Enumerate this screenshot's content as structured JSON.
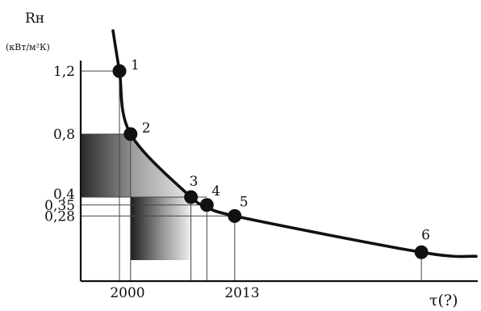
{
  "chart_data": {
    "type": "line",
    "ylabel": "Rн",
    "ylabel_unit": "(кВт/м²К)",
    "xlabel": "τ(?)",
    "y_ticks": [
      "1,2",
      "0,8",
      "0,4",
      "0,35",
      "0,28"
    ],
    "y_tick_values": [
      1.2,
      0.8,
      0.4,
      0.35,
      0.28
    ],
    "x_ticks": [
      "2000",
      "2013"
    ],
    "x_tick_values": [
      2000,
      2013
    ],
    "ylim": [
      0,
      1.45
    ],
    "xlim": [
      1995,
      2046
    ],
    "grid": false,
    "series": [
      {
        "points": [
          {
            "label": "1",
            "x": 2000,
            "y": 1.2
          },
          {
            "label": "2",
            "x": 2001.4,
            "y": 0.8
          },
          {
            "label": "3",
            "x": 2009,
            "y": 0.4
          },
          {
            "label": "4",
            "x": 2011,
            "y": 0.35
          },
          {
            "label": "5",
            "x": 2014.5,
            "y": 0.28
          },
          {
            "label": "6",
            "x": 2038,
            "y": 0.05
          }
        ]
      }
    ],
    "shaded_regions": [
      {
        "x": [
          1995,
          2001.4
        ],
        "y": [
          0.4,
          0.8
        ]
      },
      {
        "x": [
          2001.4,
          2009
        ],
        "y": [
          0.4,
          0.8
        ]
      },
      {
        "x": [
          2001.4,
          2009
        ],
        "y": [
          0,
          0.4
        ]
      }
    ]
  }
}
